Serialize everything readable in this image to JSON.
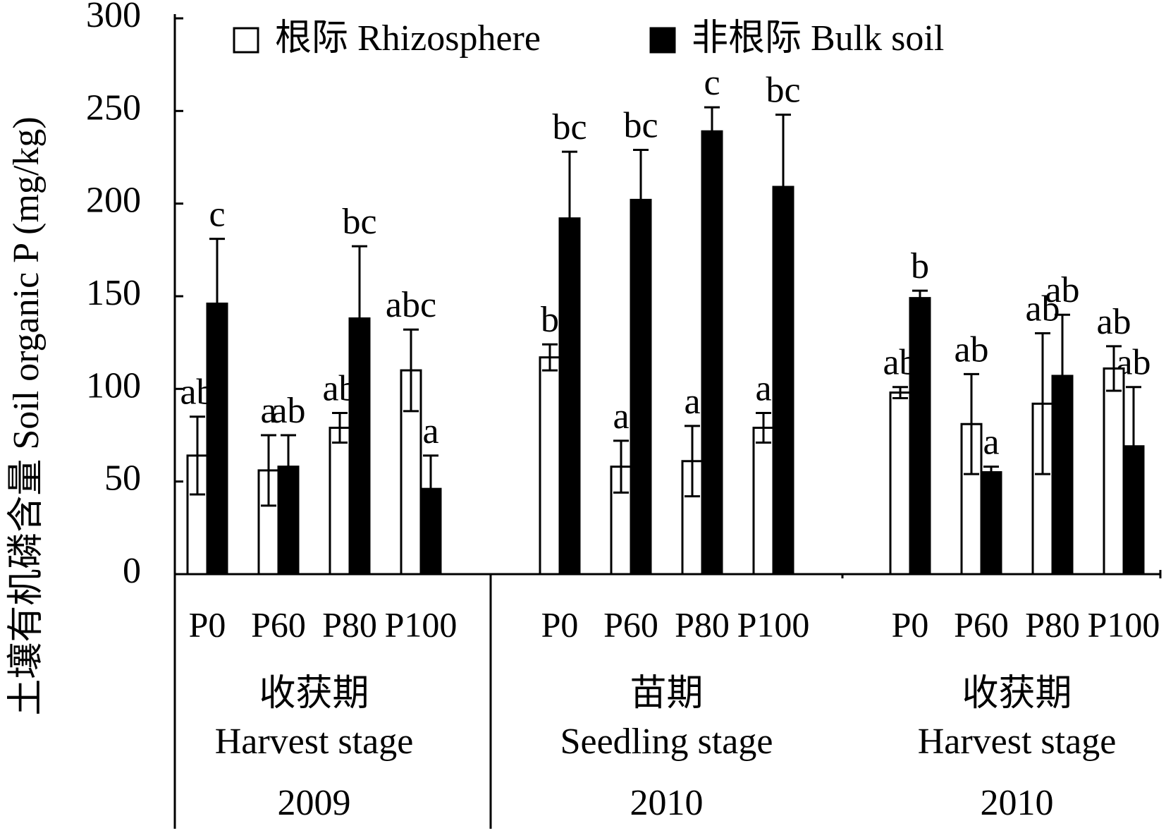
{
  "chart_data": {
    "type": "bar",
    "y_label": "土壤有机磷含量 Soil organic P (mg/kg)",
    "categories": [
      "P0",
      "P60",
      "P80",
      "P100",
      "P0",
      "P60",
      "P80",
      "P100",
      "P0",
      "P60",
      "P80",
      "P100"
    ],
    "groups": [
      {
        "stage_zh": "收获期",
        "stage_en": "Harvest stage",
        "year": "2009"
      },
      {
        "stage_zh": "苗期",
        "stage_en": "Seedling stage",
        "year": "2010"
      },
      {
        "stage_zh": "收获期",
        "stage_en": "Harvest stage",
        "year": "2010"
      }
    ],
    "series": [
      {
        "name": "根际 Rhizosphere",
        "color": "#ffffff",
        "values": [
          64,
          56,
          79,
          110,
          117,
          58,
          61,
          79,
          98,
          81,
          92,
          111
        ],
        "errors": [
          21,
          19,
          8,
          22,
          7,
          14,
          19,
          8,
          3,
          27,
          38,
          12
        ],
        "letters": [
          "ab",
          "a",
          "ab",
          "abc",
          "b",
          "a",
          "a",
          "a",
          "ab",
          "ab",
          "ab",
          "ab"
        ]
      },
      {
        "name": "非根际 Bulk soil",
        "color": "#000000",
        "values": [
          146,
          58,
          138,
          46,
          192,
          202,
          239,
          209,
          149,
          55,
          107,
          69
        ],
        "errors": [
          35,
          17,
          39,
          18,
          36,
          27,
          13,
          39,
          4,
          3,
          33,
          32
        ],
        "letters": [
          "c",
          "ab",
          "bc",
          "a",
          "bc",
          "bc",
          "c",
          "bc",
          "b",
          "a",
          "ab",
          "ab"
        ]
      }
    ],
    "ylim": [
      0,
      300
    ],
    "yticks": [
      0,
      50,
      100,
      150,
      200,
      250,
      300
    ],
    "legend": "top"
  }
}
